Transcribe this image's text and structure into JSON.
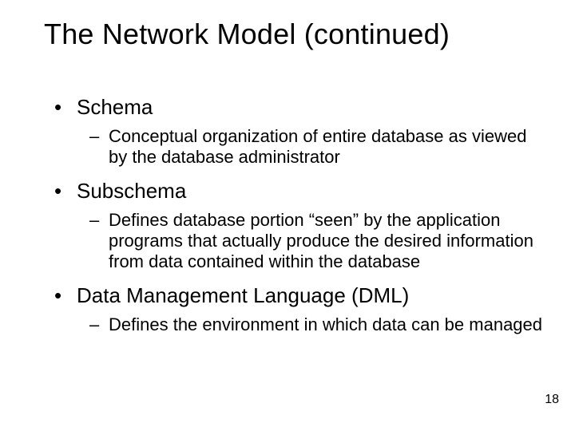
{
  "title": "The Network Model (continued)",
  "items": [
    {
      "label": "Schema",
      "sub": "Conceptual organization of entire database as viewed by the database administrator"
    },
    {
      "label": "Subschema",
      "sub": "Defines database portion “seen” by the application programs that actually produce the desired information from data contained within the database"
    },
    {
      "label": "Data Management Language (DML)",
      "sub": "Defines the environment in which data can be managed"
    }
  ],
  "page_number": "18",
  "style": {
    "background_color": "#ffffff",
    "text_color": "#000000",
    "title_fontsize": 36,
    "l1_fontsize": 26,
    "l2_fontsize": 22,
    "pagenum_fontsize": 16,
    "font_family": "Arial"
  }
}
